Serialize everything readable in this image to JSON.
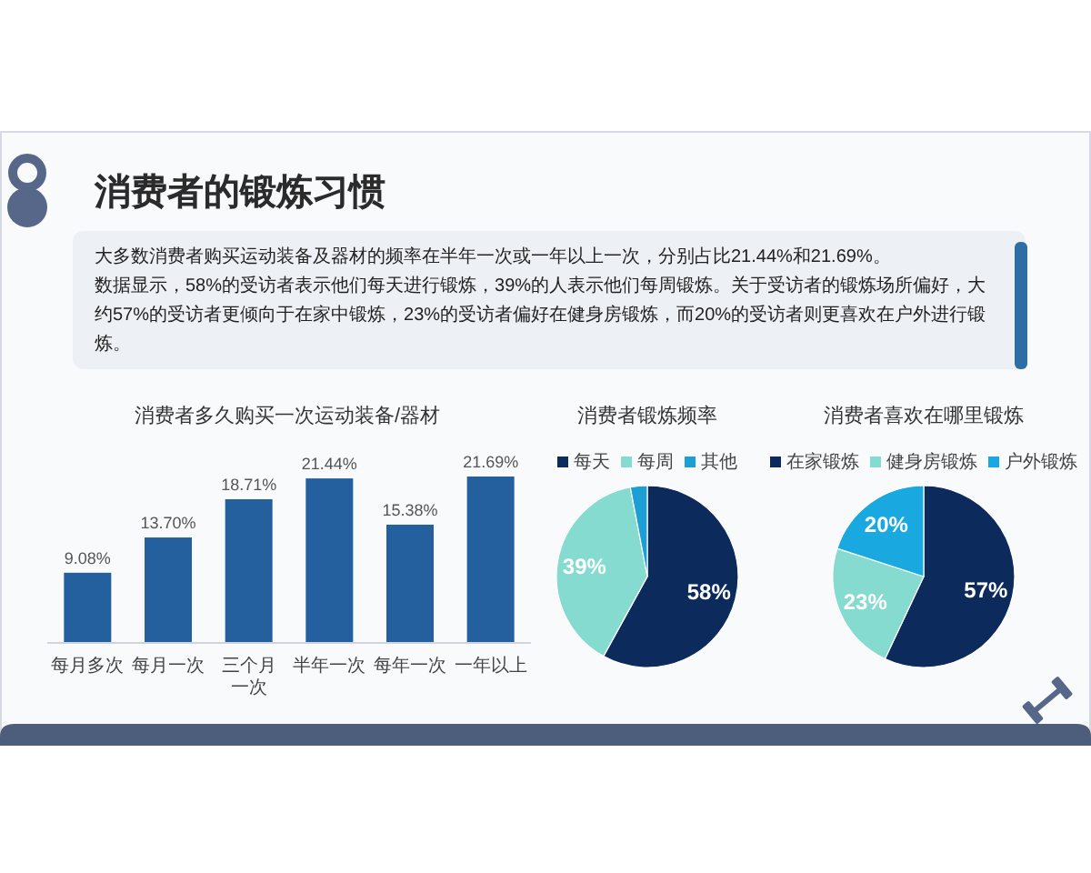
{
  "chart_data": [
    {
      "type": "other",
      "title": "消费者的锻炼习惯",
      "annotations": [
        "大多数消费者购买运动装备及器材的频率在半年一次或一年以上一次，分别占比21.44%和21.69%。",
        "数据显示，58%的受访者表示他们每天进行锻炼，39%的人表示他们每周锻炼。关于受访者的锻炼场所偏好，大约57%的受访者更倾向于在家中锻炼，23%的受访者偏好在健身房锻炼，而20%的受访者则更喜欢在户外进行锻炼。"
      ]
    },
    {
      "type": "bar",
      "title": "消费者多久购买一次运动装备/器材",
      "categories": [
        "每月多次",
        "每月一次",
        "三个月一次",
        "半年一次",
        "每年一次",
        "一年以上"
      ],
      "values": [
        9.08,
        13.7,
        18.71,
        21.44,
        15.38,
        21.69
      ],
      "value_labels": [
        "9.08%",
        "13.70%",
        "18.71%",
        "21.44%",
        "15.38%",
        "21.69%"
      ],
      "color": "#245f9e"
    },
    {
      "type": "pie",
      "title": "消费者锻炼频率",
      "categories": [
        "每天",
        "每周",
        "其他"
      ],
      "values": [
        58,
        39,
        3
      ],
      "value_labels": [
        "58%",
        "39%",
        null
      ],
      "colors": [
        "#0c2a5c",
        "#86dbd0",
        "#1d9fd6"
      ],
      "legend": "top"
    },
    {
      "type": "pie",
      "title": "消费者喜欢在哪里锻炼",
      "categories": [
        "在家锻炼",
        "健身房锻炼",
        "户外锻炼"
      ],
      "values": [
        57,
        23,
        20
      ],
      "value_labels": [
        "57%",
        "23%",
        "20%"
      ],
      "colors": [
        "#0c2a5c",
        "#86dbd0",
        "#19a8e0"
      ],
      "legend": "top"
    }
  ]
}
